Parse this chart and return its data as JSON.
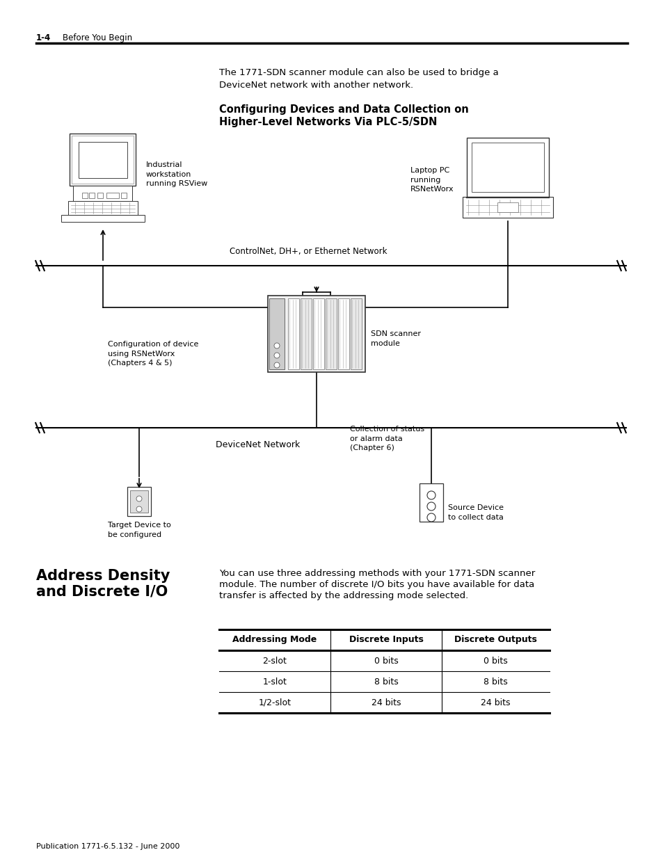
{
  "page_header_number": "1-4",
  "page_header_text": "Before You Begin",
  "bg_color": "#ffffff",
  "intro_text_line1": "The 1771-SDN scanner module can also be used to bridge a",
  "intro_text_line2": "DeviceNet network with another network.",
  "section_title_line1": "Configuring Devices and Data Collection on",
  "section_title_line2": "Higher-Level Networks Via PLC-5/SDN",
  "table_headers": [
    "Addressing Mode",
    "Discrete Inputs",
    "Discrete Outputs"
  ],
  "table_rows": [
    [
      "2-slot",
      "0 bits",
      "0 bits"
    ],
    [
      "1-slot",
      "8 bits",
      "8 bits"
    ],
    [
      "1/2-slot",
      "24 bits",
      "24 bits"
    ]
  ],
  "section_left_title_line1": "Address Density",
  "section_left_title_line2": "and Discrete I/O",
  "section_body_line1": "You can use three addressing methods with your 1771-SDN scanner",
  "section_body_line2": "module. The number of discrete I/O bits you have available for data",
  "section_body_line3": "transfer is affected by the addressing mode selected.",
  "footer_text": "Publication 1771-6.5.132 - June 2000",
  "label_workstation": "Industrial\nworkstation\nrunning RSView",
  "label_laptop": "Laptop PC\nrunning\nRSNetWorx",
  "label_network": "ControlNet, DH+, or Ethernet Network",
  "label_sdnscanner": "SDN scanner\nmodule",
  "label_config": "Configuration of device\nusing RSNetWorx\n(Chapters 4 & 5)",
  "label_devicenet": "DeviceNet Network",
  "label_collection": "Collection of status\nor alarm data\n(Chapter 6)",
  "label_target": "Target Device to\nbe configured",
  "label_source": "Source Device\nto collect data"
}
